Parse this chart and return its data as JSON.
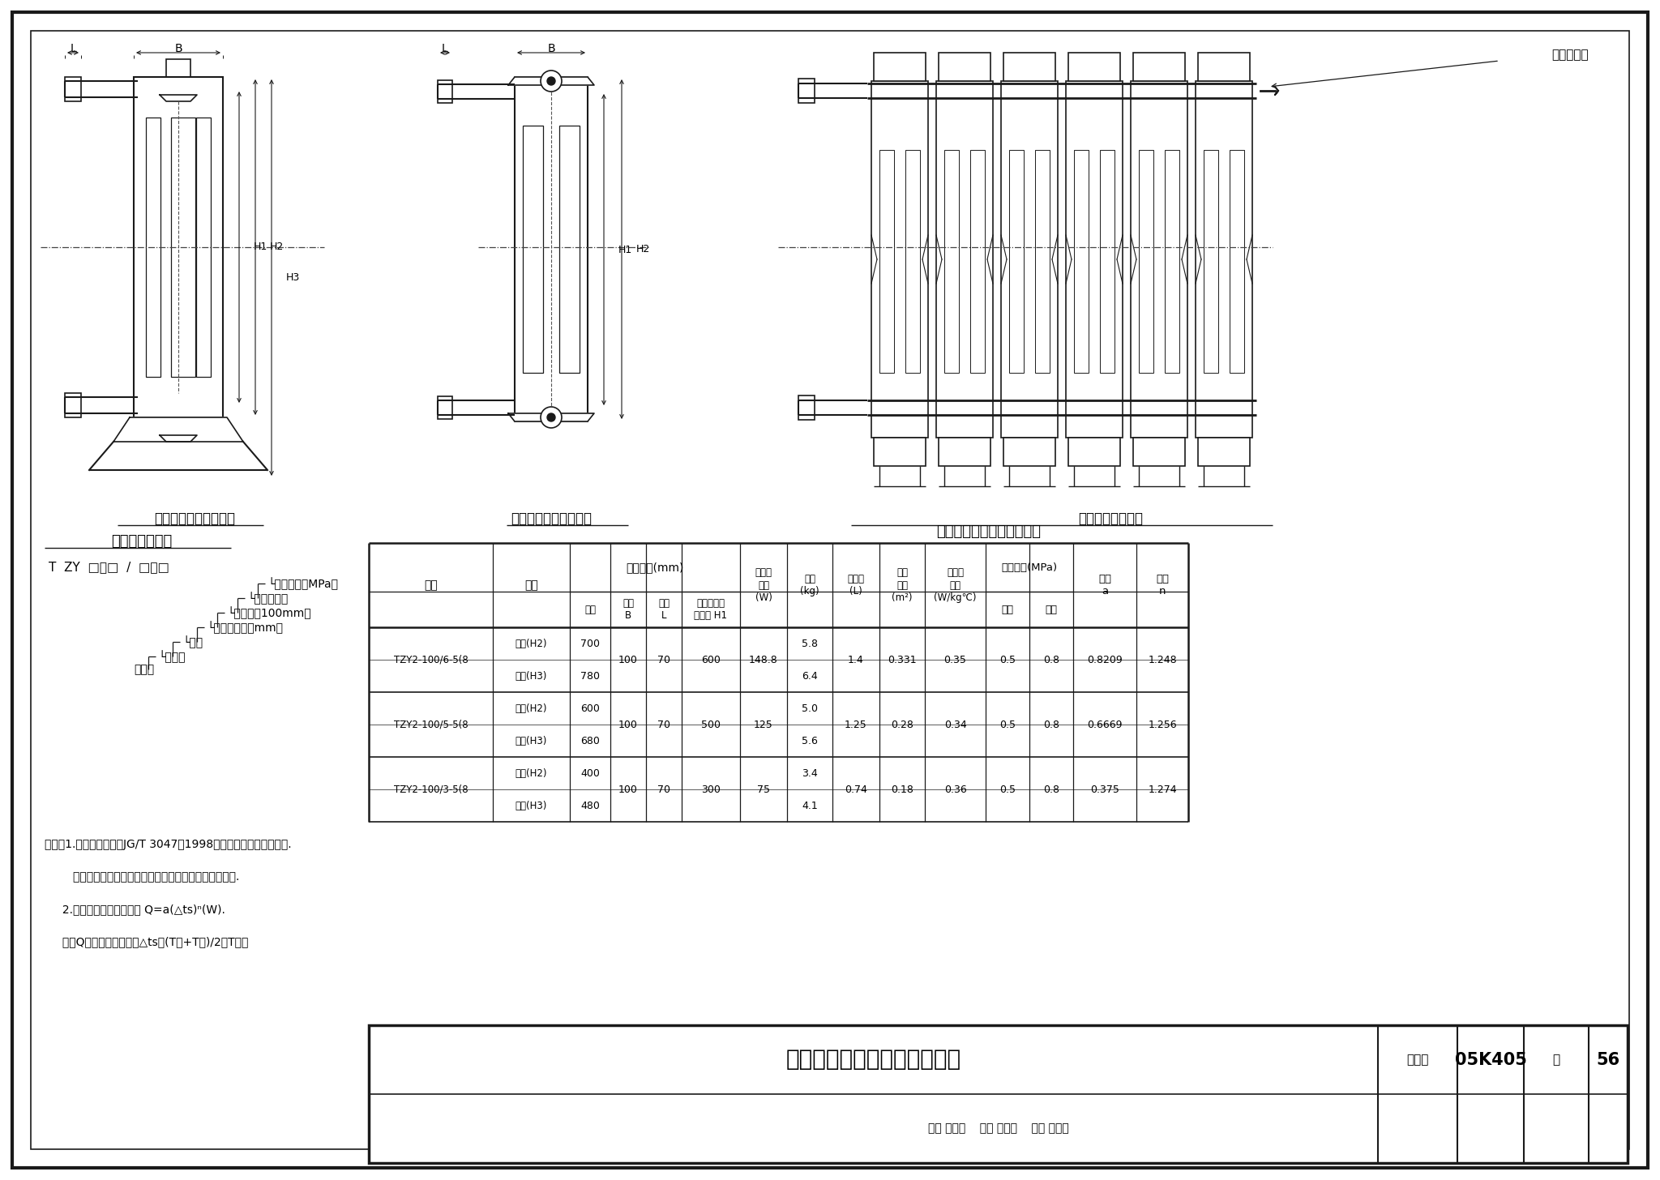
{
  "bg_color": "#f5f5f0",
  "title": "内腔无粘砂铸铁柱翼型散热器",
  "figure_number": "05K405",
  "page": "56",
  "diagram_labels": {
    "foot_piece": "铸铁柱翼型散热器足片",
    "middle_piece": "铸铁柱翼型散热器中片",
    "radiator": "铸铁柱翼型散热器",
    "manual_valve": "手动放气阀"
  },
  "model_code_title": "散热器型号标记",
  "note_lines": [
    "说明：1.本页适用于符合JG/T 3047－1998行业标准铸铁柱翼散热器.",
    "        根据河北圣春散热器股份有限公司提供的技术资料编制.",
    "     2.单片非标准工况散热量 Q=a(△ts)ⁿ(W).",
    "     式中Q：计算的散热量；△ts＝(T进+T出)/2－T室温"
  ],
  "table_title": "散热器技术性能表（单片）",
  "table_data": [
    {
      "model": "TZY2-100/6-5(8",
      "spec1": "中片(H2)",
      "h1": "700",
      "spec2": "足片(H3)",
      "h2": "780",
      "width": "100",
      "length": "70",
      "center": "600",
      "heat": "148.8",
      "mass1": "5.8",
      "mass2": "6.4",
      "water": "1.4",
      "area": "0.331",
      "strength": "0.35",
      "normal": "0.5",
      "high": "0.8",
      "a": "0.8209",
      "n": "1.248"
    },
    {
      "model": "TZY2-100/5-5(8",
      "spec1": "中片(H2)",
      "h1": "600",
      "spec2": "足片(H3)",
      "h2": "680",
      "width": "100",
      "length": "70",
      "center": "500",
      "heat": "125",
      "mass1": "5.0",
      "mass2": "5.6",
      "water": "1.25",
      "area": "0.28",
      "strength": "0.34",
      "normal": "0.5",
      "high": "0.8",
      "a": "0.6669",
      "n": "1.256"
    },
    {
      "model": "TZY2-100/3-5(8",
      "spec1": "中片(H2)",
      "h1": "400",
      "spec2": "足片(H3)",
      "h2": "480",
      "width": "100",
      "length": "70",
      "center": "300",
      "heat": "75",
      "mass1": "3.4",
      "mass2": "4.1",
      "water": "0.74",
      "area": "0.18",
      "strength": "0.36",
      "normal": "0.5",
      "high": "0.8",
      "a": "0.375",
      "n": "1.274"
    }
  ],
  "bottom_box": {
    "label_figure": "图集号",
    "label_page": "页",
    "figure_no": "05K405",
    "page_no": "56",
    "bottom_row": "审核 孙淑萍    校对 劳逸民    设计 胡建丽"
  }
}
